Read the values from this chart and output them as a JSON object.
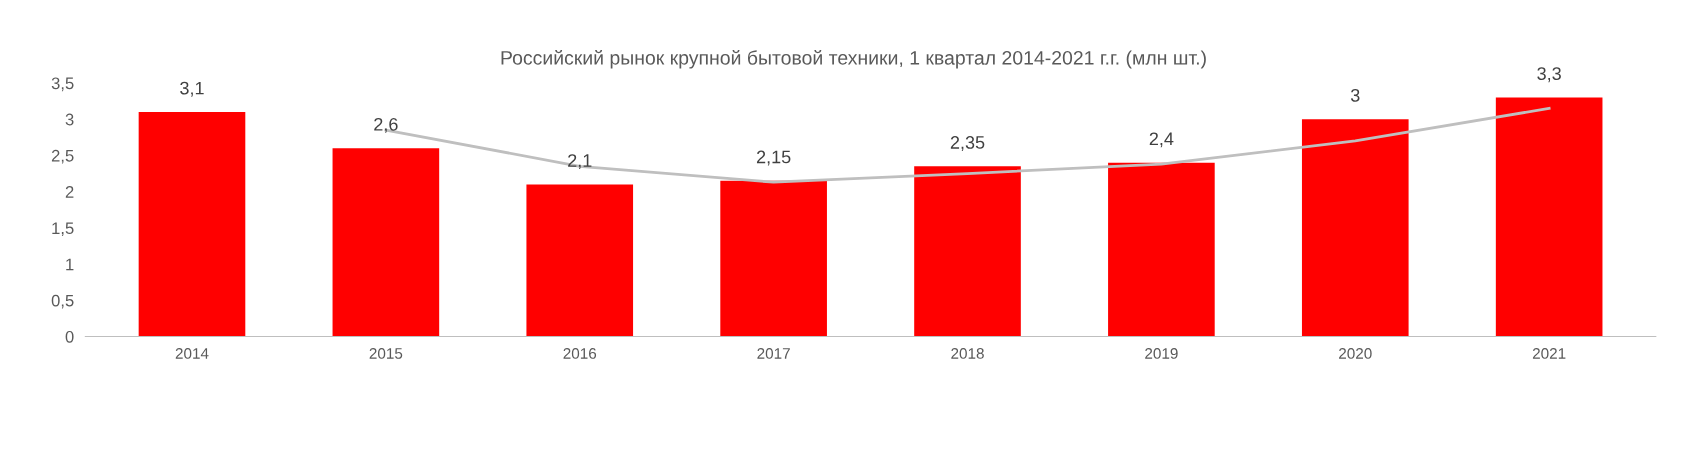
{
  "chart_data": {
    "type": "bar",
    "title": "Российский рынок крупной бытовой техники, 1 квартал 2014-2021 г.г. (млн шт.)",
    "categories": [
      "2014",
      "2015",
      "2016",
      "2017",
      "2018",
      "2019",
      "2020",
      "2021"
    ],
    "series": [
      {
        "color": "#ff0000",
        "values": [
          3.1,
          2.6,
          2.1,
          2.15,
          2.35,
          2.4,
          3,
          3.3
        ],
        "value_labels": [
          "3,1",
          "2,6",
          "2,1",
          "2,15",
          "2,35",
          "2,4",
          "3",
          "3,3"
        ]
      },
      {
        "type": "line",
        "color": "#bfbfbf",
        "values": [
          null,
          2.85,
          2.35,
          2.13,
          2.25,
          2.38,
          2.7,
          3.15
        ]
      }
    ],
    "ylim": [
      0,
      3.5
    ],
    "yticks": [
      0,
      {
        "value": 0.5,
        "label": "0,5"
      },
      1,
      {
        "value": 1.5,
        "label": "1,5"
      },
      2,
      {
        "value": 2.5,
        "label": "2,5"
      },
      3,
      {
        "value": 3.5,
        "label": "3,5"
      }
    ],
    "grid": false,
    "legend": false,
    "marker": "none",
    "line_style": "solid"
  }
}
